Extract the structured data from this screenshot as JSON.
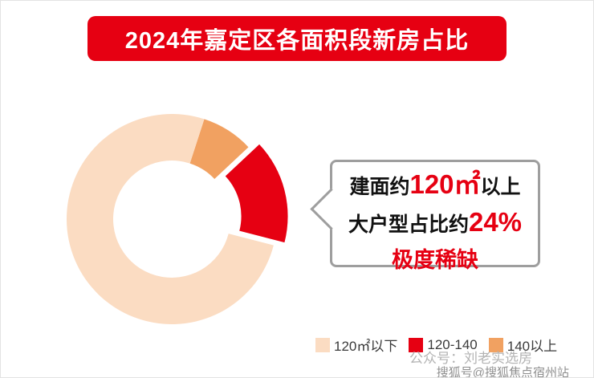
{
  "page": {
    "title_banner": "2024年嘉定区各面积段新房占比"
  },
  "chart_data": {
    "type": "pie",
    "subtype": "donut",
    "title": "2024年嘉定区各面积段新房占比",
    "start_angle_deg": 18,
    "inner_radius_ratio": 0.56,
    "segments": [
      {
        "label": "140以上",
        "value": 8,
        "color": "#f1a161",
        "exploded": false
      },
      {
        "label": "120-140",
        "value": 16,
        "color": "#e60012",
        "exploded": true
      },
      {
        "label": "120㎡以下",
        "value": 76,
        "color": "#fbdcc2",
        "exploded": false
      }
    ],
    "unit": "%",
    "legend_position": "bottom-right",
    "legend_order": [
      2,
      1,
      0
    ],
    "annotation": "建面约120㎡以上 大户型占比约24% 极度稀缺"
  },
  "callout": {
    "line1_prefix": "建面约",
    "line1_value": "120㎡",
    "line1_suffix": "以上",
    "line2_prefix": "大户型占比约",
    "line2_value": "24%",
    "line3": "极度稀缺"
  },
  "watermarks": {
    "line1": "公众号：刘老实选房",
    "line2": "搜狐号@搜狐焦点宿州站"
  },
  "colors": {
    "banner_bg": "#e60012",
    "accent_red": "#e60012",
    "slice_light": "#fbdcc2",
    "slice_orange": "#f1a161",
    "callout_border": "#9e9e9e"
  }
}
